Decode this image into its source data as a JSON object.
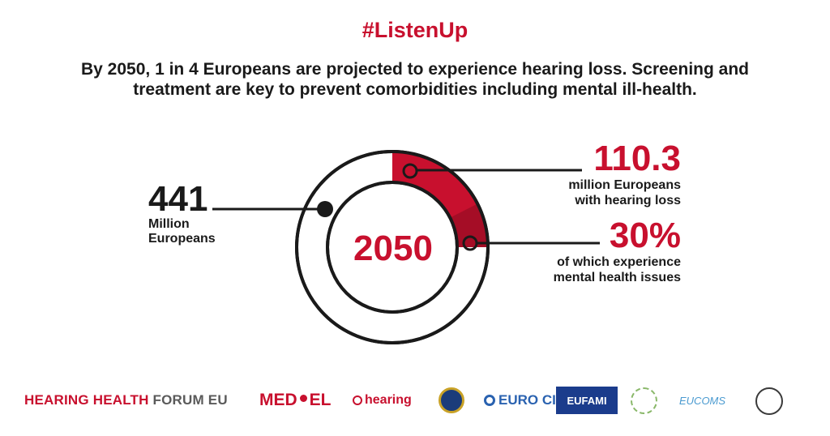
{
  "header": {
    "hashtag": "#ListenUp",
    "intro_line1": "By 2050, 1 in 4 Europeans are projected to experience hearing loss. Screening and",
    "intro_line2": "treatment are key to prevent comorbidities including mental ill-health."
  },
  "infographic": {
    "center_year": "2050",
    "population": {
      "value": "441",
      "label_line1": "Million",
      "label_line2": "Europeans"
    },
    "hearing_loss": {
      "value": "110.3",
      "label_line1": "million Europeans",
      "label_line2": "with hearing loss"
    },
    "mental_health": {
      "value": "30%",
      "label_line1": "of which experience",
      "label_line2": "mental health issues"
    },
    "hearing_loss_share": 0.25,
    "mental_health_share": 0.3,
    "colors": {
      "accent": "#c8102e",
      "accent_dark": "#a50d26",
      "text": "#1a1a1a"
    }
  },
  "logos": {
    "hhf_red": "HEARING HEALTH",
    "hhf_grey": "FORUM EU",
    "medel_left": "MED",
    "medel_right": "EL",
    "hearing": "hearing",
    "euro_ciu": "EURO CIU",
    "eufami": "EUFAMI",
    "eucoms": "EUCOMS"
  }
}
